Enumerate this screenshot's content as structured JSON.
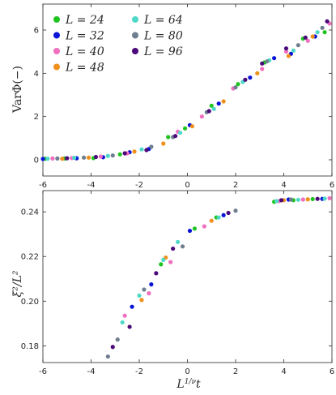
{
  "colors": {
    "24": "#1fc41f",
    "32": "#0a14d6",
    "40": "#f06fbf",
    "48": "#f0901c",
    "64": "#4fd8c8",
    "80": "#6f7f8f",
    "96": "#4b0a7a"
  },
  "legend_labels": {
    "24": "L = 24",
    "32": "L = 32",
    "40": "L = 40",
    "48": "L = 48",
    "64": "L = 64",
    "80": "L = 80",
    "96": "L = 96"
  },
  "chart_data": [
    {
      "type": "scatter",
      "ylabel": "VarΦ(−)",
      "xlabel": "",
      "xlim": [
        -6,
        6
      ],
      "ylim": [
        -0.75,
        7.2
      ],
      "xticks": [
        "-6",
        "-4",
        "-2",
        "0",
        "2",
        "4",
        "6"
      ],
      "yticks": [
        "0",
        "2",
        "4",
        "6"
      ],
      "legend_position": "top-left",
      "series": [
        {
          "name": "24",
          "points": [
            [
              -5.9,
              0.05
            ],
            [
              -5.1,
              0.06
            ],
            [
              -3.9,
              0.08
            ],
            [
              -2.8,
              0.25
            ],
            [
              -0.8,
              1.05
            ],
            [
              -0.1,
              1.45
            ],
            [
              1.0,
              2.5
            ],
            [
              2.1,
              3.5
            ],
            [
              3.2,
              4.5
            ],
            [
              4.8,
              5.6
            ],
            [
              5.7,
              5.9
            ]
          ]
        },
        {
          "name": "32",
          "points": [
            [
              -6.0,
              0.04
            ],
            [
              -4.6,
              0.07
            ],
            [
              -3.5,
              0.12
            ],
            [
              -2.4,
              0.35
            ],
            [
              -1.6,
              0.5
            ],
            [
              0.1,
              1.6
            ],
            [
              1.3,
              2.6
            ],
            [
              2.6,
              3.8
            ],
            [
              3.6,
              4.7
            ],
            [
              4.3,
              4.9
            ],
            [
              5.3,
              5.7
            ]
          ]
        },
        {
          "name": "40",
          "points": [
            [
              -5.6,
              0.06
            ],
            [
              -4.8,
              0.08
            ],
            [
              -3.6,
              0.15
            ],
            [
              -2.5,
              0.3
            ],
            [
              -0.4,
              1.3
            ],
            [
              0.6,
              2.0
            ],
            [
              1.9,
              3.3
            ],
            [
              3.1,
              4.2
            ],
            [
              4.1,
              5.0
            ],
            [
              5.0,
              5.5
            ],
            [
              5.9,
              6.3
            ]
          ]
        },
        {
          "name": "48",
          "points": [
            [
              -5.2,
              0.05
            ],
            [
              -4.1,
              0.1
            ],
            [
              -2.2,
              0.38
            ],
            [
              -1.0,
              0.75
            ],
            [
              0.2,
              1.55
            ],
            [
              1.5,
              2.7
            ],
            [
              2.9,
              4.0
            ],
            [
              4.2,
              4.8
            ],
            [
              5.2,
              5.7
            ]
          ]
        },
        {
          "name": "64",
          "points": [
            [
              -5.8,
              0.05
            ],
            [
              -4.7,
              0.09
            ],
            [
              -3.3,
              0.18
            ],
            [
              -1.9,
              0.48
            ],
            [
              -0.3,
              1.25
            ],
            [
              1.1,
              2.35
            ],
            [
              2.3,
              3.6
            ],
            [
              3.4,
              4.6
            ],
            [
              4.4,
              5.05
            ],
            [
              5.4,
              5.9
            ]
          ]
        },
        {
          "name": "80",
          "points": [
            [
              -5.4,
              0.06
            ],
            [
              -4.3,
              0.1
            ],
            [
              -3.1,
              0.2
            ],
            [
              -1.5,
              0.6
            ],
            [
              -0.6,
              1.05
            ],
            [
              0.8,
              2.2
            ],
            [
              2.0,
              3.35
            ],
            [
              3.3,
              4.55
            ],
            [
              4.6,
              5.3
            ],
            [
              5.6,
              6.1
            ]
          ]
        },
        {
          "name": "96",
          "points": [
            [
              -5.0,
              0.07
            ],
            [
              -3.8,
              0.13
            ],
            [
              -2.6,
              0.3
            ],
            [
              -1.7,
              0.45
            ],
            [
              -0.5,
              1.1
            ],
            [
              0.9,
              2.25
            ],
            [
              2.4,
              3.7
            ],
            [
              3.1,
              4.45
            ],
            [
              4.1,
              5.15
            ],
            [
              4.9,
              5.65
            ],
            [
              5.8,
              6.4
            ]
          ]
        }
      ]
    },
    {
      "type": "scatter",
      "ylabel": "ξ²/L²",
      "xlabel": "L^{1/ν}t",
      "xlim": [
        -6,
        6
      ],
      "ylim": [
        0.1725,
        0.2495
      ],
      "xticks": [
        "-6",
        "-4",
        "-2",
        "0",
        "2",
        "4",
        "6"
      ],
      "yticks": [
        "0.18",
        "0.20",
        "0.22",
        "0.24"
      ],
      "series": [
        {
          "name": "24",
          "points": [
            [
              -1.1,
              0.2165
            ],
            [
              0.3,
              0.2325
            ],
            [
              1.2,
              0.2375
            ],
            [
              3.6,
              0.2445
            ],
            [
              4.4,
              0.2452
            ],
            [
              5.2,
              0.2457
            ]
          ]
        },
        {
          "name": "32",
          "points": [
            [
              -2.3,
              0.1975
            ],
            [
              -1.5,
              0.2075
            ],
            [
              0.1,
              0.2315
            ],
            [
              1.5,
              0.2385
            ],
            [
              4.2,
              0.2455
            ],
            [
              5.6,
              0.2458
            ]
          ]
        },
        {
          "name": "40",
          "points": [
            [
              -2.6,
              0.1935
            ],
            [
              -1.6,
              0.2035
            ],
            [
              -0.7,
              0.2175
            ],
            [
              0.7,
              0.2335
            ],
            [
              3.8,
              0.2448
            ],
            [
              4.8,
              0.2455
            ],
            [
              5.9,
              0.2461
            ]
          ]
        },
        {
          "name": "48",
          "points": [
            [
              -1.9,
              0.2005
            ],
            [
              -0.9,
              0.2195
            ],
            [
              1.0,
              0.236
            ],
            [
              4.0,
              0.2452
            ],
            [
              5.0,
              0.2456
            ]
          ]
        },
        {
          "name": "64",
          "points": [
            [
              -2.7,
              0.1905
            ],
            [
              -2.0,
              0.2025
            ],
            [
              -1.0,
              0.2185
            ],
            [
              -0.4,
              0.2265
            ],
            [
              1.3,
              0.2375
            ],
            [
              3.7,
              0.2448
            ],
            [
              4.6,
              0.2454
            ],
            [
              5.7,
              0.2459
            ]
          ]
        },
        {
          "name": "80",
          "points": [
            [
              -3.3,
              0.1752
            ],
            [
              -2.9,
              0.1828
            ],
            [
              -1.8,
              0.2052
            ],
            [
              -0.2,
              0.2245
            ],
            [
              2.0,
              0.2405
            ],
            [
              4.3,
              0.2455
            ]
          ]
        },
        {
          "name": "96",
          "points": [
            [
              -3.1,
              0.1795
            ],
            [
              -2.4,
              0.1885
            ],
            [
              -1.3,
              0.2125
            ],
            [
              -0.6,
              0.2235
            ],
            [
              1.7,
              0.2395
            ],
            [
              3.9,
              0.2452
            ],
            [
              5.4,
              0.2458
            ]
          ]
        }
      ]
    }
  ]
}
